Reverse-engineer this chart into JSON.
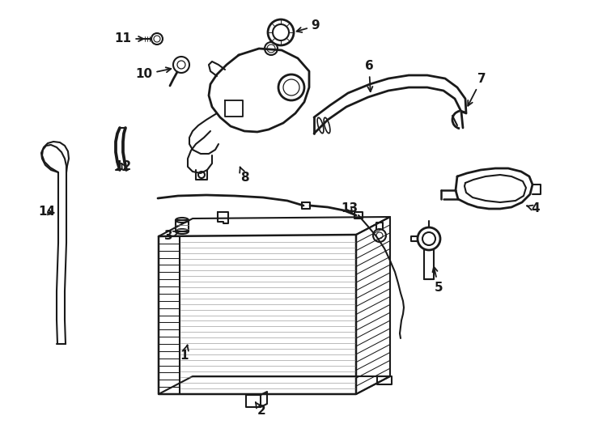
{
  "bg_color": "#ffffff",
  "lc": "#1a1a1a",
  "lw": 1.5,
  "fig_w": 7.34,
  "fig_h": 5.4,
  "dpi": 100,
  "fs": 11
}
